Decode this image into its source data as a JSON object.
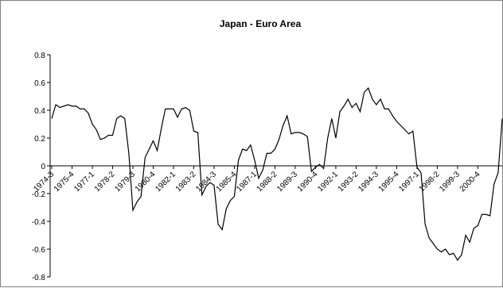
{
  "chart_data": {
    "type": "line",
    "title": "Japan - Euro Area",
    "xlabel": "",
    "ylabel": "",
    "ylim": [
      -0.8,
      0.8
    ],
    "yticks": [
      "-0.8",
      "-0.6",
      "-0.4",
      "-0.2",
      "0",
      "0.2",
      "0.4",
      "0.6",
      "0.8"
    ],
    "xtick_labels": [
      "1974-3",
      "1975-4",
      "1977-1",
      "1978-2",
      "1979-3",
      "1980-4",
      "1982-1",
      "1983-2",
      "1984-3",
      "1985-4",
      "1987-1",
      "1988-2",
      "1989-3",
      "1990-4",
      "1992-1",
      "1993-2",
      "1994-3",
      "1995-4",
      "1997-1",
      "1998-2",
      "1999-3",
      "2000-4"
    ],
    "grid": false,
    "legend": "none",
    "line_color": "#000000",
    "series": [
      {
        "start": "1974-3",
        "frequency": "quarterly",
        "values": [
          0.34,
          0.44,
          0.42,
          0.43,
          0.44,
          0.43,
          0.43,
          0.41,
          0.41,
          0.38,
          0.3,
          0.26,
          0.19,
          0.2,
          0.22,
          0.22,
          0.34,
          0.36,
          0.34,
          0.09,
          -0.32,
          -0.26,
          -0.22,
          0.06,
          0.12,
          0.18,
          0.11,
          0.27,
          0.41,
          0.41,
          0.41,
          0.35,
          0.41,
          0.42,
          0.4,
          0.25,
          0.24,
          -0.21,
          -0.15,
          -0.12,
          -0.14,
          -0.42,
          -0.46,
          -0.31,
          -0.25,
          -0.22,
          0.04,
          0.12,
          0.11,
          0.15,
          0.04,
          -0.09,
          -0.03,
          0.09,
          0.09,
          0.12,
          0.19,
          0.29,
          0.36,
          0.23,
          0.24,
          0.24,
          0.23,
          0.21,
          -0.04,
          -0.01,
          0.01,
          -0.02,
          0.2,
          0.34,
          0.2,
          0.39,
          0.43,
          0.48,
          0.42,
          0.45,
          0.39,
          0.53,
          0.56,
          0.48,
          0.44,
          0.48,
          0.41,
          0.41,
          0.36,
          0.32,
          0.29,
          0.26,
          0.23,
          0.25,
          -0.01,
          -0.05,
          -0.42,
          -0.52,
          -0.56,
          -0.6,
          -0.62,
          -0.6,
          -0.64,
          -0.63,
          -0.68,
          -0.64,
          -0.5,
          -0.55,
          -0.45,
          -0.43,
          -0.35,
          -0.35,
          -0.36,
          -0.13,
          -0.05,
          0.34
        ]
      }
    ]
  }
}
